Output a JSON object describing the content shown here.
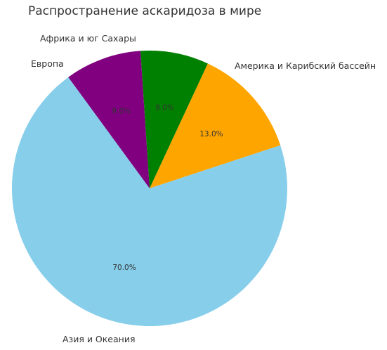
{
  "chart_data": {
    "type": "pie",
    "title": "Распространение аскаридоза в мире",
    "slices": [
      {
        "label": "Америка и Карибский бассейн",
        "value": 13.0,
        "pct_label": "13.0%",
        "color": "#FFA500"
      },
      {
        "label": "Азия и Океания",
        "value": 70.0,
        "pct_label": "70.0%",
        "color": "#87CEEB"
      },
      {
        "label": "Европа",
        "value": 9.0,
        "pct_label": "9.0%",
        "color": "#800080"
      },
      {
        "label": "Африка и юг Сахары",
        "value": 8.0,
        "pct_label": "8.0%",
        "color": "#008000"
      }
    ],
    "start_angle_deg": 65,
    "direction": "clockwise"
  }
}
